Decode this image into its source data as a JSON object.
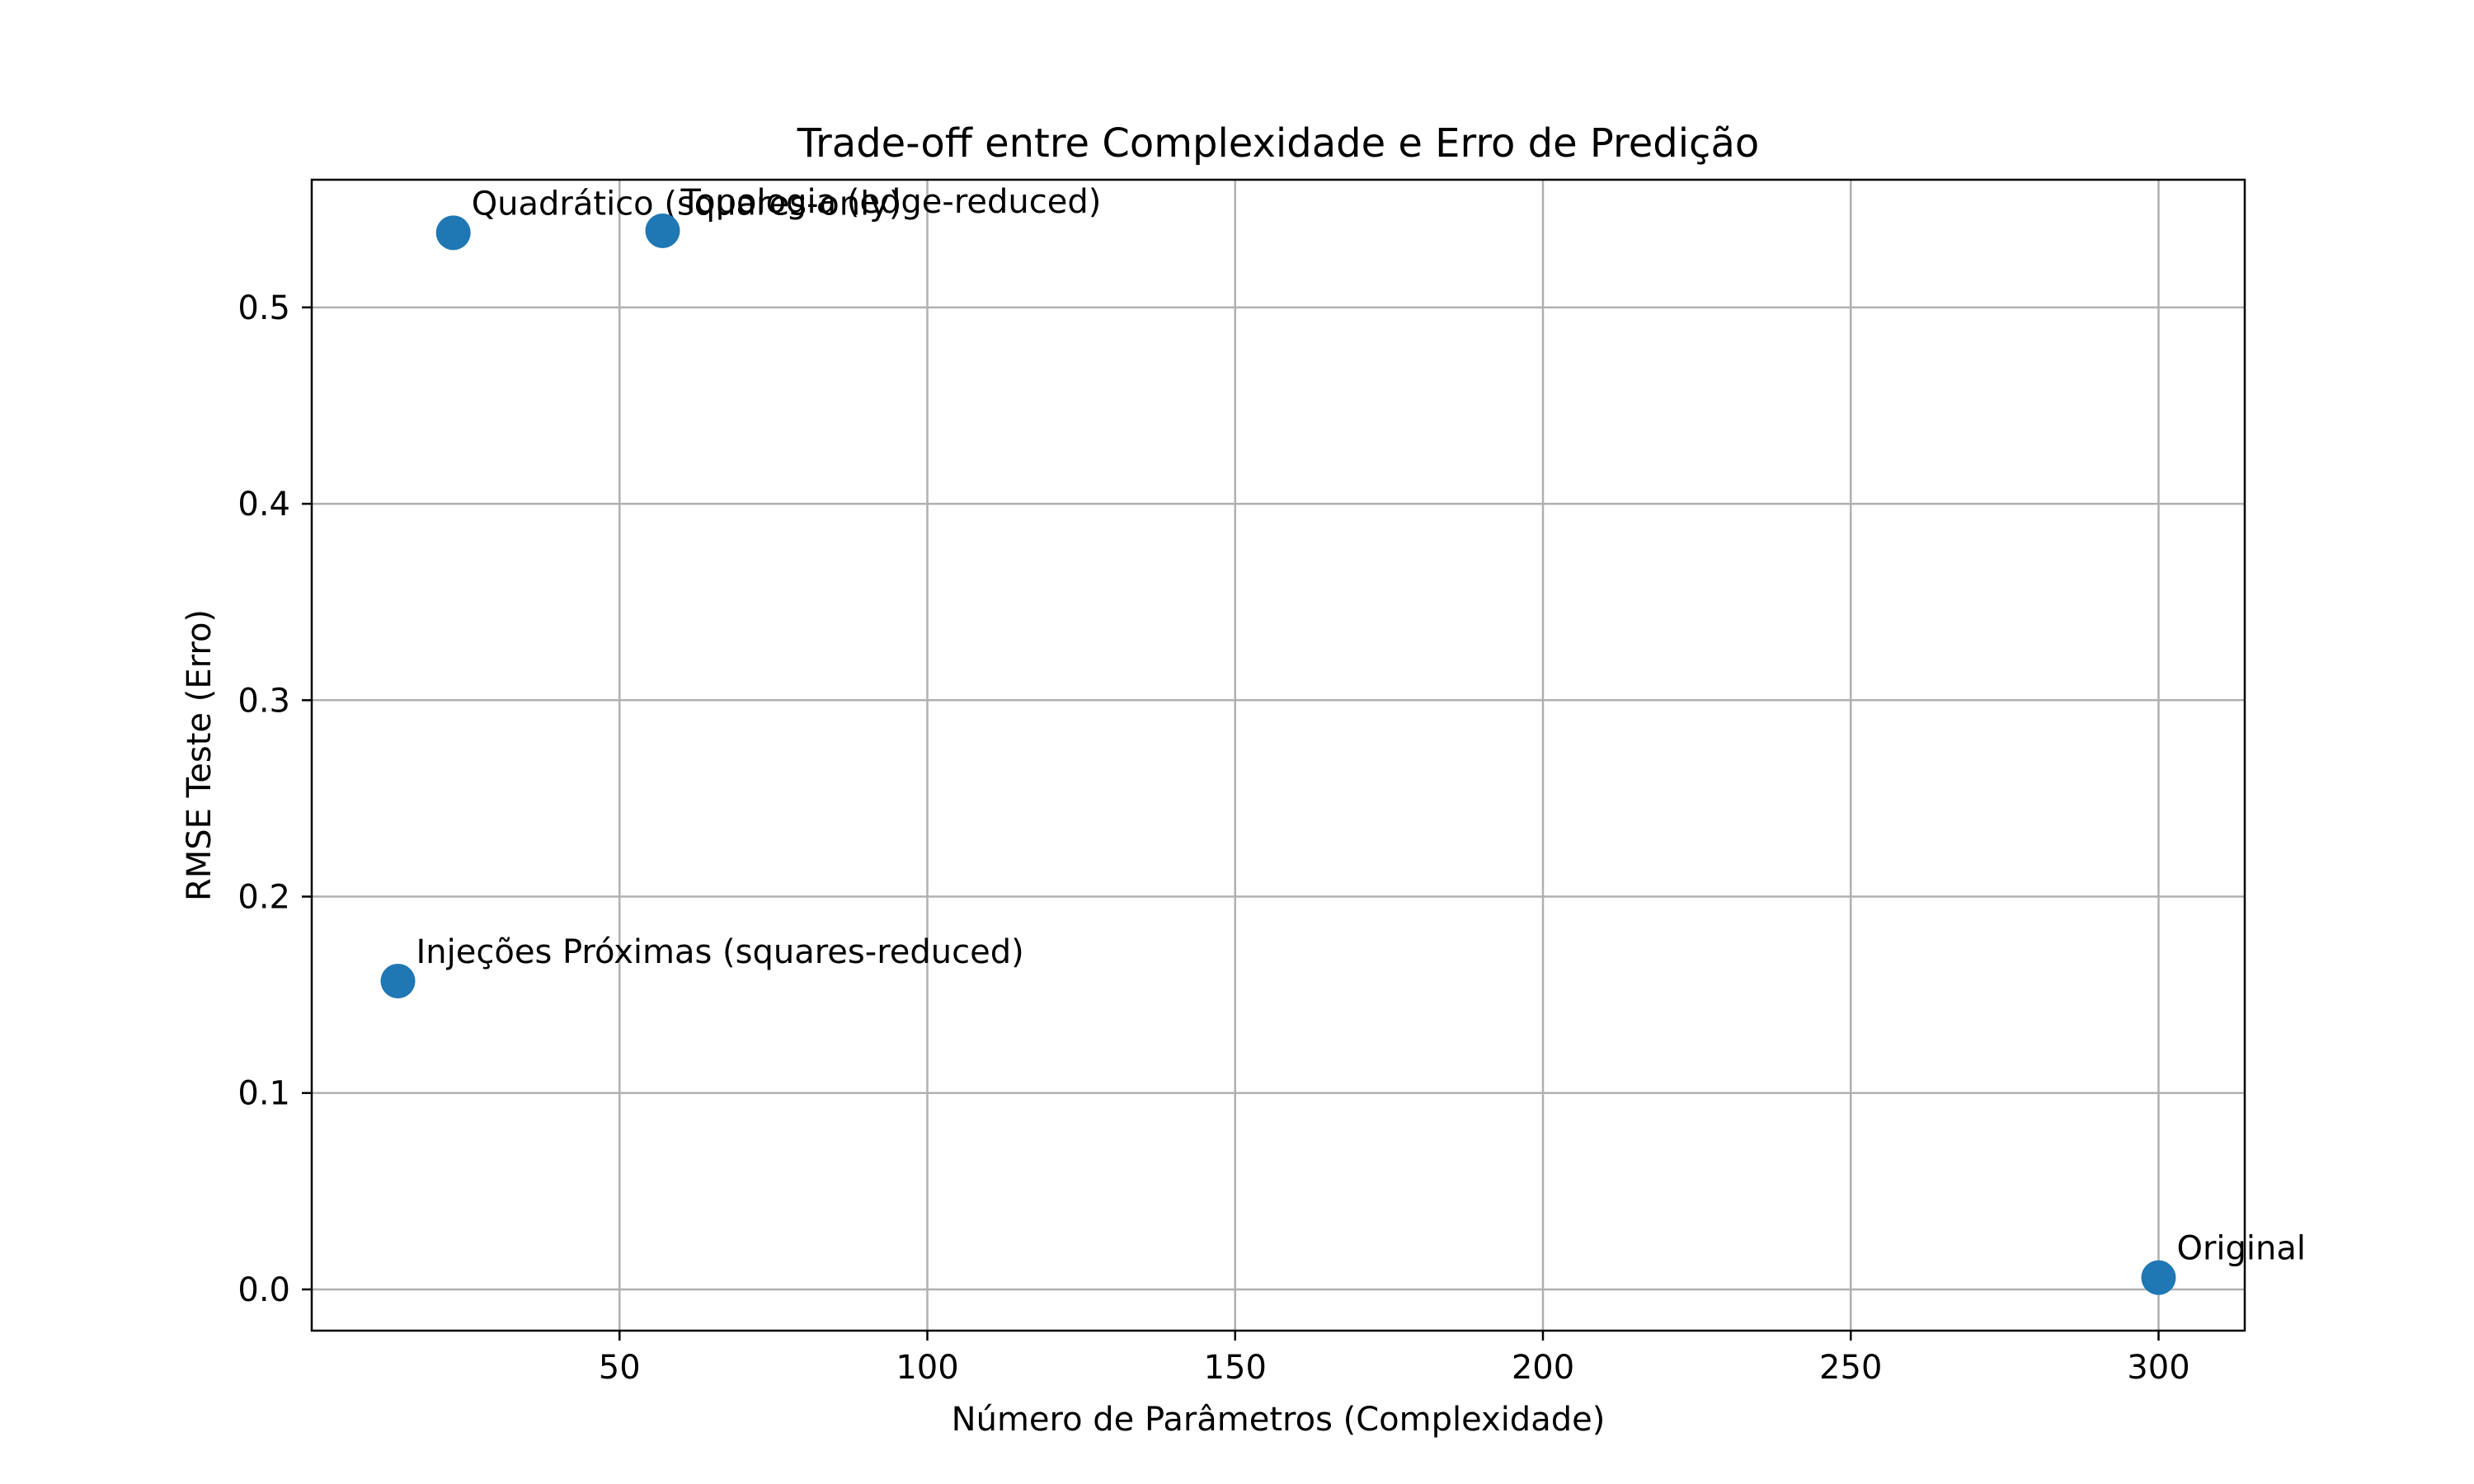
{
  "chart_data": {
    "type": "scatter",
    "title": "Trade-off entre Complexidade e Erro de Predição",
    "xlabel": "Número de Parâmetros (Complexidade)",
    "ylabel": "RMSE Teste (Erro)",
    "xlim": [
      0,
      314
    ],
    "ylim": [
      -0.021,
      0.565
    ],
    "xticks": [
      50,
      100,
      150,
      200,
      250,
      300
    ],
    "yticks": [
      0.0,
      0.1,
      0.2,
      0.3,
      0.4,
      0.5
    ],
    "xtick_labels": [
      "50",
      "100",
      "150",
      "200",
      "250",
      "300"
    ],
    "ytick_labels": [
      "0.0",
      "0.1",
      "0.2",
      "0.3",
      "0.4",
      "0.5"
    ],
    "grid": true,
    "marker_color": "#1f77b4",
    "points": [
      {
        "label": "Quadrático (squares-only)",
        "x": 23,
        "y": 0.538
      },
      {
        "label": "Topologia (edge-reduced)",
        "x": 57,
        "y": 0.539
      },
      {
        "label": "Injeções Próximas (squares-reduced)",
        "x": 14,
        "y": 0.157
      },
      {
        "label": "Original",
        "x": 300,
        "y": 0.006
      }
    ]
  }
}
